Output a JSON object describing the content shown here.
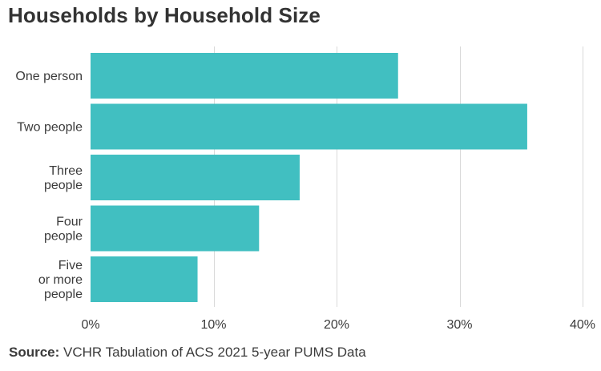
{
  "title": "Households by Household Size",
  "source": {
    "label": "Source:",
    "text": "VCHR Tabulation of ACS 2021 5-year PUMS Data"
  },
  "colors": {
    "bar": "#41bfc1",
    "grid": "#d9d9d9",
    "text": "#3b3b3b"
  },
  "chart_data": {
    "type": "bar",
    "orientation": "horizontal",
    "categories": [
      [
        "One person"
      ],
      [
        "Two people"
      ],
      [
        "Three",
        "people"
      ],
      [
        "Four",
        "people"
      ],
      [
        "Five",
        "or more",
        "people"
      ]
    ],
    "values": [
      25.0,
      35.5,
      17.0,
      13.7,
      8.7
    ],
    "xlim": [
      0,
      40
    ],
    "xticks": [
      0,
      10,
      20,
      30,
      40
    ],
    "xtick_labels": [
      "0%",
      "10%",
      "20%",
      "30%",
      "40%"
    ],
    "grid": "vertical"
  }
}
